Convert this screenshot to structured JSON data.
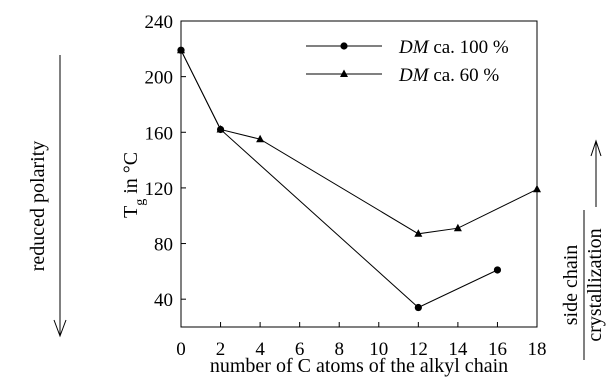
{
  "chart_data": {
    "type": "line",
    "xlabel": "number of C atoms of the alkyl chain",
    "ylabel_main": "T",
    "ylabel_sub": "g",
    "ylabel_rest": " in °C",
    "xlim": [
      0,
      18
    ],
    "ylim": [
      20,
      240
    ],
    "x_ticks": [
      0,
      2,
      4,
      6,
      8,
      10,
      12,
      14,
      16,
      18
    ],
    "y_ticks": [
      40,
      80,
      120,
      160,
      200,
      240
    ],
    "grid": false,
    "legend_position": "top-right",
    "series": [
      {
        "name_italic": "DM",
        "name_rest": " ca. 100 %",
        "marker": "circle",
        "x": [
          0,
          2,
          12,
          16
        ],
        "y": [
          219,
          162,
          34,
          61
        ]
      },
      {
        "name_italic": "DM",
        "name_rest": " ca. 60 %",
        "marker": "triangle",
        "x": [
          0,
          2,
          4,
          12,
          14,
          18
        ],
        "y": [
          219,
          162,
          155,
          87,
          91,
          119
        ]
      }
    ],
    "annotations": {
      "left": "reduced polarity",
      "right_line1": "side chain",
      "right_line2": "crystallization"
    }
  }
}
